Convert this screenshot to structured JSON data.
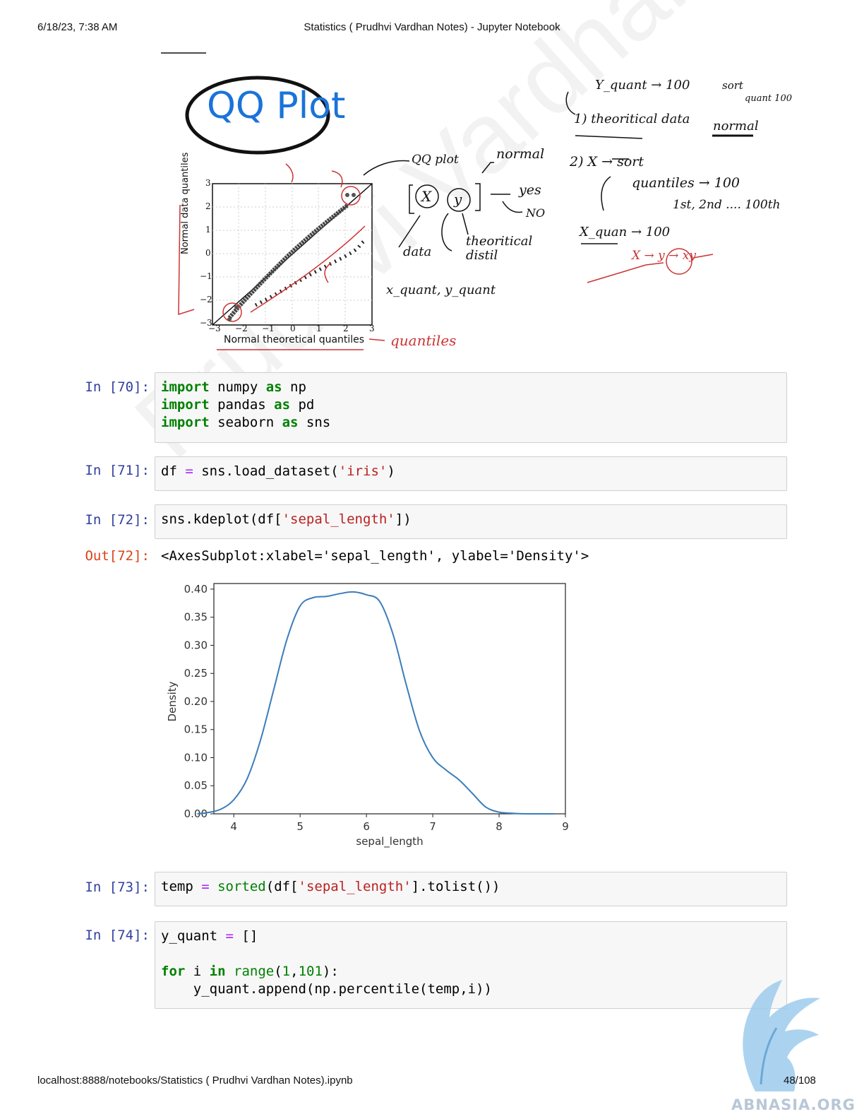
{
  "header": {
    "datetime": "6/18/23, 7:38 AM",
    "title": "Statistics ( Prudhvi Vardhan Notes) - Jupyter Notebook"
  },
  "footer": {
    "url": "localhost:8888/notebooks/Statistics ( Prudhvi Vardhan Notes).ipynb",
    "page": "48/108"
  },
  "watermark": "Prudhvi Vardhan",
  "logo_text": "ABNASIA.ORG",
  "notes": {
    "title": "QQ Plot",
    "qq_axis_x": "Normal theoretical quantiles",
    "qq_axis_y": "Normal data quantiles",
    "qq_xticks": [
      "−3",
      "−2",
      "−1",
      "0",
      "1",
      "2",
      "3"
    ],
    "qq_yticks": [
      "3",
      "2",
      "1",
      "0",
      "−1",
      "−2",
      "−3"
    ],
    "qq_arrow_label": "quantiles",
    "qqplot_label": "QQ plot",
    "normal": "normal",
    "x": "X",
    "y": "y",
    "yes": "yes",
    "no": "NO",
    "data": "data",
    "theoretical": "theoritical distil",
    "xy_quant": "x_quant, y_quant",
    "step1_y": "Y_quant → 100",
    "step1": "1) theoritical data",
    "step1_sort": "sort",
    "step1_quant": "quant 100",
    "step1_normal": "normal",
    "step2": "2) X → sort",
    "step2_quantiles": "quantiles → 100",
    "step2_ranks": "1st, 2nd .... 100th",
    "x_quan": "X_quan → 100",
    "xy_arrow": "X → y → xy"
  },
  "cells": [
    {
      "prompt": "In [70]:"
    },
    {
      "prompt": "In [71]:"
    },
    {
      "prompt": "In [72]:"
    },
    {
      "prompt": "In [73]:"
    },
    {
      "prompt": "In [74]:"
    }
  ],
  "output": {
    "prompt": "Out[72]:",
    "text": "<AxesSubplot:xlabel='sepal_length', ylabel='Density'>"
  },
  "code": {
    "c70": {
      "l1_kw": "import",
      "l1_mod": " numpy ",
      "l1_as": "as",
      "l1_alias": " np",
      "l2_kw": "import",
      "l2_mod": " pandas ",
      "l2_as": "as",
      "l2_alias": " pd",
      "l3_kw": "import",
      "l3_mod": " seaborn ",
      "l3_as": "as",
      "l3_alias": " sns"
    },
    "c71": {
      "a": "df ",
      "op": "=",
      "b": " sns.load_dataset(",
      "str": "'iris'",
      "c": ")"
    },
    "c72": {
      "a": "sns.kdeplot(df[",
      "str": "'sepal_length'",
      "c": "])"
    },
    "c73": {
      "a": "temp ",
      "op": "=",
      "sp": " ",
      "fn": "sorted",
      "b": "(df[",
      "str": "'sepal_length'",
      "c": "].tolist())"
    },
    "c74": {
      "l1a": "y_quant ",
      "l1op": "=",
      "l1b": " []",
      "l3kw1": "for",
      "l3a": " i ",
      "l3kw2": "in",
      "l3sp": " ",
      "l3fn": "range",
      "l3b": "(",
      "l3n1": "1",
      "l3c": ",",
      "l3n2": "101",
      "l3d": "):",
      "l4": "    y_quant.append(np.percentile(temp,i))"
    }
  },
  "chart_data": {
    "type": "line",
    "xlabel": "sepal_length",
    "ylabel": "Density",
    "xlim": [
      3.7,
      9.0
    ],
    "ylim": [
      0.0,
      0.41
    ],
    "xticks": [
      4,
      5,
      6,
      7,
      8,
      9
    ],
    "yticks": [
      0.0,
      0.05,
      0.1,
      0.15,
      0.2,
      0.25,
      0.3,
      0.35,
      0.4
    ],
    "ytick_labels": [
      "0.00",
      "0.05",
      "0.10",
      "0.15",
      "0.20",
      "0.25",
      "0.30",
      "0.35",
      "0.40"
    ],
    "color": "#3b7dbb",
    "series": [
      {
        "x": [
          3.45,
          3.6,
          3.8,
          4.0,
          4.2,
          4.4,
          4.6,
          4.8,
          5.0,
          5.2,
          5.4,
          5.6,
          5.8,
          6.0,
          6.2,
          6.4,
          6.6,
          6.8,
          7.0,
          7.2,
          7.4,
          7.6,
          7.8,
          8.0,
          8.2,
          8.4,
          8.6,
          8.82
        ],
        "y": [
          0.0,
          0.002,
          0.008,
          0.025,
          0.062,
          0.13,
          0.22,
          0.31,
          0.37,
          0.385,
          0.387,
          0.392,
          0.395,
          0.39,
          0.378,
          0.32,
          0.23,
          0.148,
          0.1,
          0.078,
          0.06,
          0.036,
          0.012,
          0.003,
          0.001,
          0.0,
          0.0,
          0.0
        ]
      }
    ]
  }
}
